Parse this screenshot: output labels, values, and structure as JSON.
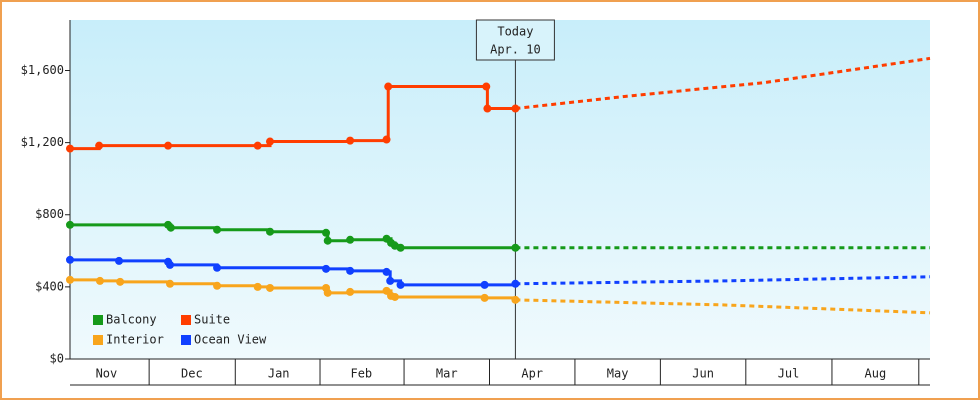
{
  "chart_data": {
    "type": "line",
    "step": true,
    "xlim": [
      2,
      309
    ],
    "xticks": [
      {
        "value": 15,
        "label": "Nov"
      },
      {
        "value": 45.5,
        "label": "Dec"
      },
      {
        "value": 76.5,
        "label": "Jan"
      },
      {
        "value": 106,
        "label": "Feb"
      },
      {
        "value": 136.5,
        "label": "Mar"
      },
      {
        "value": 167,
        "label": "Apr"
      },
      {
        "value": 197.5,
        "label": "May"
      },
      {
        "value": 228,
        "label": "Jun"
      },
      {
        "value": 258.5,
        "label": "Jul"
      },
      {
        "value": 289.5,
        "label": "Aug"
      }
    ],
    "ylim": [
      0,
      1880
    ],
    "yticks": [
      {
        "value": 0,
        "label": "$0"
      },
      {
        "value": 400,
        "label": "$400"
      },
      {
        "value": 800,
        "label": "$800"
      },
      {
        "value": 1200,
        "label": "$1,200"
      },
      {
        "value": 1600,
        "label": "$1,600"
      }
    ],
    "grid": false,
    "today": {
      "x": 161,
      "label": [
        "Today",
        "Apr. 10"
      ]
    },
    "legend": "lower-left",
    "series": [
      {
        "name": "Balcony",
        "color": "#169a1a",
        "x": [
          2,
          37,
          38,
          54.5,
          73.4,
          93.4,
          94,
          102,
          115,
          116.6,
          118,
          120,
          161
        ],
        "values": [
          744,
          744,
          728,
          717,
          706,
          700,
          656,
          661,
          667,
          644,
          628,
          617,
          617
        ],
        "forecast": {
          "x": [
            161,
            309
          ],
          "values": [
            617,
            617
          ]
        }
      },
      {
        "name": "Suite",
        "color": "#ff3d00",
        "x": [
          2,
          12.4,
          37,
          69,
          73.4,
          102,
          115,
          115.6,
          150.6,
          151,
          161
        ],
        "values": [
          1167,
          1183,
          1183,
          1183,
          1206,
          1211,
          1217,
          1511,
          1511,
          1389,
          1389
        ],
        "forecast": {
          "x": [
            161,
            200,
            250,
            309
          ],
          "values": [
            1389,
            1456,
            1533,
            1667
          ]
        }
      },
      {
        "name": "Interior",
        "color": "#f8a51c",
        "x": [
          2,
          12.7,
          19.9,
          37.7,
          54.5,
          69,
          73.4,
          93.4,
          94,
          102,
          115,
          116.6,
          118,
          150,
          161
        ],
        "values": [
          439,
          433,
          428,
          417,
          406,
          400,
          394,
          394,
          367,
          372,
          378,
          350,
          344,
          339,
          328
        ],
        "forecast": {
          "x": [
            161,
            235,
            309
          ],
          "values": [
            328,
            300,
            256
          ]
        }
      },
      {
        "name": "Ocean View",
        "color": "#1040ff",
        "x": [
          2,
          19.5,
          37,
          37.7,
          54.5,
          93.4,
          102,
          115,
          116.3,
          120,
          150,
          161
        ],
        "values": [
          550,
          544,
          539,
          522,
          506,
          500,
          489,
          483,
          433,
          411,
          411,
          417
        ],
        "forecast": {
          "x": [
            161,
            235,
            309
          ],
          "values": [
            417,
            433,
            456
          ]
        }
      }
    ]
  }
}
